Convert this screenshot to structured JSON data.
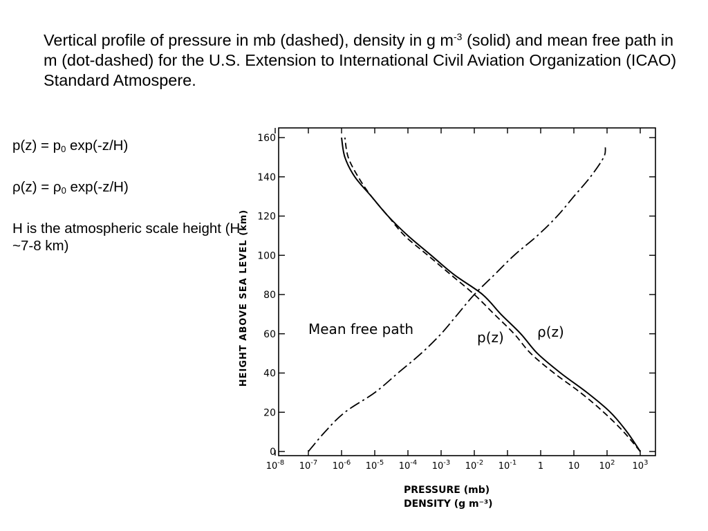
{
  "caption": {
    "part1": "Vertical profile of pressure in mb (dashed), density in g m",
    "exp": "-3",
    "part2": " (solid) and mean free path in m (dot-dashed) for the U.S. Extension to International Civil Aviation Organization (ICAO) Standard Atmospere."
  },
  "notes": {
    "eq1": {
      "lhs": "p(z) = p",
      "sub": "0",
      "rhs": " exp(-z/H)"
    },
    "eq2": {
      "lhs": "ρ(z) = ρ",
      "sub": "0",
      "rhs": " exp(-z/H)"
    },
    "scale_height": "H is the atmospheric scale height (H ~7-8 km)"
  },
  "chart_data": {
    "type": "line",
    "xscale": "log",
    "xlim": [
      -8,
      3.4
    ],
    "ylim": [
      0,
      160
    ],
    "ylabel": "HEIGHT ABOVE SEA LEVEL  (km)",
    "xlabel_line1": "PRESSURE (mb)",
    "xlabel_line2": "DENSITY (g m⁻³)",
    "yticks": [
      "0",
      "20",
      "40",
      "60",
      "80",
      "100",
      "120",
      "140",
      "160"
    ],
    "xticks": [
      {
        "base": "10",
        "exp": "-8",
        "pos": -8
      },
      {
        "base": "10",
        "exp": "-7",
        "pos": -7
      },
      {
        "base": "10",
        "exp": "-6",
        "pos": -6
      },
      {
        "base": "10",
        "exp": "-5",
        "pos": -5
      },
      {
        "base": "10",
        "exp": "-4",
        "pos": -4
      },
      {
        "base": "10",
        "exp": "-3",
        "pos": -3
      },
      {
        "base": "10",
        "exp": "-2",
        "pos": -2
      },
      {
        "base": "10",
        "exp": "-1",
        "pos": -1
      },
      {
        "base": "1",
        "exp": "",
        "pos": 0
      },
      {
        "base": "10",
        "exp": "",
        "pos": 1
      },
      {
        "base": "10",
        "exp": "2",
        "pos": 2
      },
      {
        "base": "10",
        "exp": "3",
        "pos": 3
      }
    ],
    "grid": false,
    "series": [
      {
        "style": "solid",
        "color": "#000000",
        "points": [
          [
            3.0,
            0
          ],
          [
            2.6,
            10
          ],
          [
            2.1,
            20
          ],
          [
            1.4,
            30
          ],
          [
            0.6,
            40
          ],
          [
            -0.1,
            50
          ],
          [
            -0.6,
            60
          ],
          [
            -1.2,
            70
          ],
          [
            -1.75,
            80
          ],
          [
            -2.6,
            90
          ],
          [
            -3.3,
            100
          ],
          [
            -4.0,
            110
          ],
          [
            -4.6,
            120
          ],
          [
            -5.1,
            130
          ],
          [
            -5.6,
            140
          ],
          [
            -5.9,
            150
          ],
          [
            -6.0,
            160
          ]
        ]
      },
      {
        "style": "dashed",
        "color": "#000000",
        "points": [
          [
            3.0,
            0
          ],
          [
            2.5,
            10
          ],
          [
            1.9,
            20
          ],
          [
            1.2,
            30
          ],
          [
            0.4,
            40
          ],
          [
            -0.3,
            50
          ],
          [
            -0.8,
            60
          ],
          [
            -1.4,
            70
          ],
          [
            -2.0,
            80
          ],
          [
            -2.7,
            90
          ],
          [
            -3.4,
            100
          ],
          [
            -4.1,
            110
          ],
          [
            -4.6,
            120
          ],
          [
            -5.1,
            130
          ],
          [
            -5.5,
            140
          ],
          [
            -5.8,
            150
          ],
          [
            -5.9,
            160
          ]
        ]
      },
      {
        "style": "dash-dot",
        "color": "#000000",
        "points": [
          [
            -7.0,
            0
          ],
          [
            -6.5,
            10
          ],
          [
            -5.9,
            20
          ],
          [
            -5.0,
            30
          ],
          [
            -4.3,
            40
          ],
          [
            -3.6,
            50
          ],
          [
            -3.0,
            60
          ],
          [
            -2.5,
            70
          ],
          [
            -2.0,
            80
          ],
          [
            -1.4,
            90
          ],
          [
            -0.8,
            100
          ],
          [
            -0.1,
            110
          ],
          [
            0.5,
            120
          ],
          [
            1.0,
            130
          ],
          [
            1.5,
            140
          ],
          [
            1.9,
            150
          ],
          [
            1.95,
            155
          ]
        ]
      }
    ],
    "annotations": {
      "mfp": "Mean free path",
      "p": "p(z)",
      "rho": "ρ(z)"
    }
  }
}
